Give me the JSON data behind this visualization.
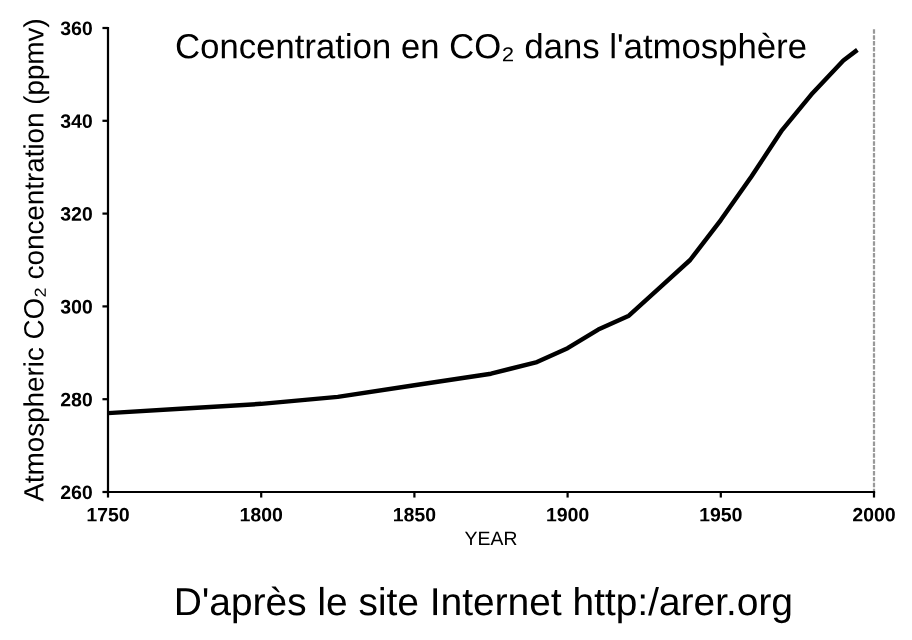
{
  "chart_data": {
    "type": "line",
    "title": "Concentration en CO₂ dans l'atmosphère",
    "xlabel": "YEAR",
    "ylabel": "Atmospheric CO₂ concentration (ppmv)",
    "annotations": [
      "D'après le site Internet http:/arer.org"
    ],
    "x": [
      1750,
      1775,
      1800,
      1825,
      1850,
      1875,
      1890,
      1900,
      1910,
      1920,
      1930,
      1940,
      1950,
      1960,
      1970,
      1980,
      1990,
      1994
    ],
    "series": [
      {
        "color": "#000000",
        "values": [
          277,
          278,
          279,
          280.5,
          283,
          285.5,
          288,
          291,
          295,
          298,
          304,
          310,
          318.6,
          328,
          338,
          346,
          353,
          355
        ]
      }
    ],
    "xlim": [
      1750,
      2000
    ],
    "xticks": [
      1750,
      1800,
      1850,
      1900,
      1950,
      2000
    ],
    "ylim": [
      260,
      360
    ],
    "yticks": [
      260,
      280,
      300,
      320,
      340,
      360
    ],
    "grid": false,
    "legend": false,
    "marker": "none",
    "line_style": "solid"
  }
}
